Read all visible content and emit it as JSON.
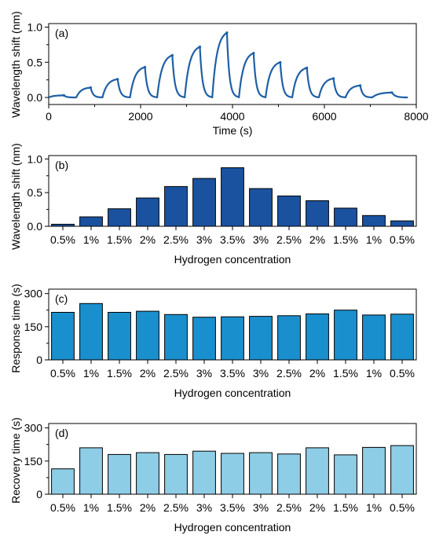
{
  "chart_data": [
    {
      "type": "line",
      "panel_label": "(a)",
      "xlabel": "Time (s)",
      "ylabel": "Wavelength shift (nm)",
      "xlim": [
        0,
        8000
      ],
      "ylim": [
        -0.1,
        1.05
      ],
      "xticks": [
        0,
        2000,
        4000,
        6000,
        8000
      ],
      "xtick_labels": [
        "0",
        "2000",
        "4000",
        "6000",
        "8000"
      ],
      "yticks": [
        0.0,
        0.5,
        1.0
      ],
      "ytick_labels": [
        "0.0",
        "0.5",
        "1.0"
      ],
      "color": "#1f5fa6",
      "cycle_start_times": [
        0,
        600,
        1170,
        1770,
        2360,
        2960,
        3560,
        4140,
        4720,
        5300,
        5880,
        6460,
        7040
      ],
      "cycle_end_time": 7820,
      "peak_values": [
        0.03,
        0.14,
        0.26,
        0.43,
        0.6,
        0.72,
        0.92,
        0.63,
        0.5,
        0.42,
        0.27,
        0.17,
        0.07
      ],
      "legend": "none",
      "grid": false
    },
    {
      "type": "bar",
      "panel_label": "(b)",
      "xlabel": "Hydrogen concentration",
      "ylabel": "Wavelength shift (nm)",
      "categories": [
        "0.5%",
        "1%",
        "1.5%",
        "2%",
        "2.5%",
        "3%",
        "3.5%",
        "3%",
        "2.5%",
        "2%",
        "1.5%",
        "1%",
        "0.5%"
      ],
      "values": [
        0.03,
        0.14,
        0.26,
        0.42,
        0.59,
        0.71,
        0.87,
        0.56,
        0.45,
        0.38,
        0.27,
        0.16,
        0.08
      ],
      "ylim": [
        0,
        1.05
      ],
      "yticks": [
        0.0,
        0.5,
        1.0
      ],
      "ytick_labels": [
        "0.0",
        "0.5",
        "1.0"
      ],
      "color": "#1a52a0",
      "legend": "none",
      "grid": false
    },
    {
      "type": "bar",
      "panel_label": "(c)",
      "xlabel": "Hydrogen concentration",
      "ylabel": "Response time (s)",
      "categories": [
        "0.5%",
        "1%",
        "1.5%",
        "2%",
        "2.5%",
        "3%",
        "3.5%",
        "3%",
        "2.5%",
        "2%",
        "1.5%",
        "1%",
        "0.5%"
      ],
      "values": [
        215,
        255,
        215,
        220,
        205,
        193,
        195,
        197,
        200,
        208,
        225,
        203,
        207
      ],
      "ylim": [
        0,
        320
      ],
      "yticks": [
        0,
        150,
        300
      ],
      "ytick_labels": [
        "0",
        "150",
        "300"
      ],
      "color": "#1a8fcd",
      "legend": "none",
      "grid": false
    },
    {
      "type": "bar",
      "panel_label": "(d)",
      "xlabel": "Hydrogen concentration",
      "ylabel": "Recovery time (s)",
      "categories": [
        "0.5%",
        "1%",
        "1.5%",
        "2%",
        "2.5%",
        "3%",
        "3.5%",
        "3%",
        "2.5%",
        "2%",
        "1.5%",
        "1%",
        "0.5%"
      ],
      "values": [
        115,
        210,
        180,
        188,
        180,
        195,
        185,
        188,
        182,
        210,
        178,
        212,
        220
      ],
      "ylim": [
        0,
        320
      ],
      "yticks": [
        0,
        150,
        300
      ],
      "ytick_labels": [
        "0",
        "150",
        "300"
      ],
      "color": "#8ecde6",
      "legend": "none",
      "grid": false
    }
  ]
}
